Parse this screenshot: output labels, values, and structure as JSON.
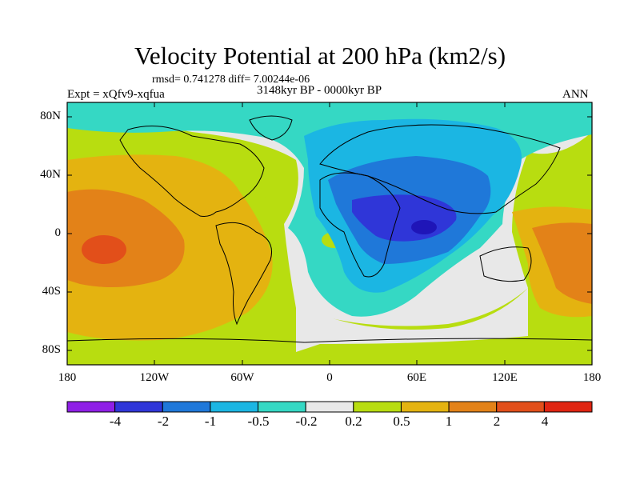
{
  "title": "Velocity Potential at 200 hPa (km2/s)",
  "stats": "rmsd= 0.741278 diff= 7.00244e-06",
  "left_label": "Expt = xQfv9-xqfua",
  "center_label": "3148kyr BP - 0000kyr BP",
  "right_label": "ANN",
  "lat_labels": [
    "80N",
    "40N",
    "0",
    "40S",
    "80S"
  ],
  "lon_labels": [
    "180",
    "120W",
    "60W",
    "0",
    "60E",
    "120E",
    "180"
  ],
  "colorbar": {
    "labels": [
      "-4",
      "-2",
      "-1",
      "-0.5",
      "-0.2",
      "0.2",
      "0.5",
      "1",
      "2",
      "4"
    ],
    "colors": [
      "#8f1fe6",
      "#2f36d8",
      "#1f78d9",
      "#1bb6e3",
      "#35d8c4",
      "#e8e8e8",
      "#b8dd10",
      "#e4b310",
      "#e38218",
      "#e24f1a",
      "#e02511"
    ]
  },
  "chart_data": {
    "type": "map",
    "projection": "cylindrical equidistant",
    "field": "200 hPa velocity potential anomaly",
    "units": "km2/s",
    "lon_range": [
      -180,
      180
    ],
    "lat_range": [
      -90,
      90
    ],
    "contour_levels": [
      -4,
      -2,
      -1,
      -0.5,
      -0.2,
      0.2,
      0.5,
      1,
      2,
      4
    ],
    "features": [
      {
        "region": "central Pacific / east Pacific",
        "level": "1 to 4",
        "max_near": [
          -150,
          -10
        ]
      },
      {
        "region": "Arabian Sea / East Africa",
        "level": "-4 to -2",
        "min_near": [
          62,
          5
        ]
      },
      {
        "region": "western Pacific / Maritime Continent",
        "level": "1 to 2"
      }
    ]
  }
}
